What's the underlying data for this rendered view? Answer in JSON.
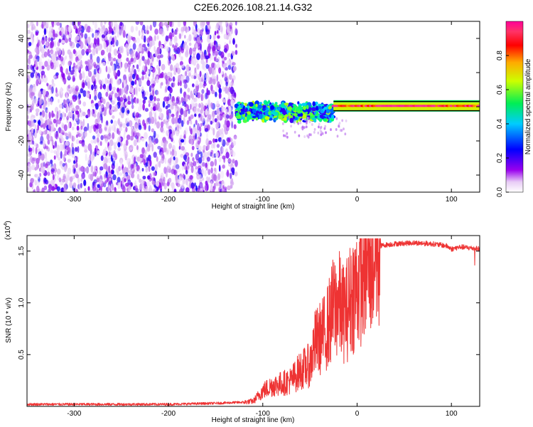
{
  "title": "C2E6.2026.108.21.14.G32",
  "chart_data": [
    {
      "type": "heatmap",
      "panel": "spectrogram",
      "xlabel": "Height of straight line (km)",
      "ylabel": "Frequency (Hz)",
      "xlim": [
        -350,
        130
      ],
      "ylim": [
        -50,
        50
      ],
      "xticks": [
        -300,
        -200,
        -100,
        0,
        100
      ],
      "yticks": [
        -40,
        -20,
        0,
        20,
        40
      ],
      "colorbar": {
        "label": "Normalized spectral amplitude",
        "range": [
          0.0,
          1.0
        ],
        "ticks": [
          0.0,
          0.2,
          0.4,
          0.6,
          0.8
        ],
        "tick_labels": [
          "0.0",
          "0.2",
          "0.4",
          "0.6",
          "0.8"
        ],
        "colormap": [
          "#ffffff",
          "#cc99ee",
          "#8800ee",
          "#0000ff",
          "#00ccff",
          "#00ff66",
          "#ccff00",
          "#ffaa00",
          "#ff0000",
          "#ff3399",
          "#ff00aa"
        ]
      },
      "regions": [
        {
          "description": "broadband noise",
          "x_range": [
            -350,
            -128
          ],
          "freq_range": [
            -50,
            50
          ],
          "amplitude": "0.05-0.25"
        },
        {
          "description": "tone spreading",
          "x_range": [
            -128,
            -25
          ],
          "freq_range": [
            -6,
            6
          ],
          "amplitude": "0.25-0.6"
        },
        {
          "description": "narrow tone",
          "x_range": [
            -25,
            130
          ],
          "freq_range": [
            -2,
            3
          ],
          "amplitude": "0.6-1.0"
        }
      ]
    },
    {
      "type": "line",
      "panel": "snr",
      "xlabel": "Height of straight line (km)",
      "ylabel": "SNR (10 * v/v)",
      "y_scale_label": "(x10",
      "y_scale_exponent": "4",
      "xlim": [
        -350,
        130
      ],
      "ylim": [
        0,
        1.65
      ],
      "xticks": [
        -300,
        -200,
        -100,
        0,
        100
      ],
      "yticks": [
        0.5,
        1.0,
        1.5
      ],
      "ytick_labels": [
        "0.5",
        "1.0",
        "1.5"
      ],
      "color": "#ee3333",
      "series": [
        {
          "x": [
            -350,
            -300,
            -250,
            -200,
            -150,
            -120,
            -110,
            -100,
            -90,
            -80,
            -70,
            -60,
            -50,
            -45,
            -40,
            -35,
            -30,
            -25,
            -20,
            -15,
            -10,
            -5,
            0,
            5,
            10,
            15,
            20,
            25,
            30,
            40,
            60,
            80,
            95,
            100,
            110,
            120,
            130
          ],
          "y": [
            0.02,
            0.02,
            0.02,
            0.02,
            0.03,
            0.04,
            0.05,
            0.15,
            0.2,
            0.22,
            0.25,
            0.35,
            0.4,
            0.6,
            0.65,
            0.7,
            0.8,
            0.95,
            1.0,
            0.9,
            0.95,
            1.1,
            1.15,
            1.3,
            1.4,
            1.45,
            1.5,
            1.55,
            1.56,
            1.57,
            1.58,
            1.57,
            1.55,
            1.52,
            1.54,
            1.53,
            1.52
          ]
        }
      ]
    }
  ]
}
